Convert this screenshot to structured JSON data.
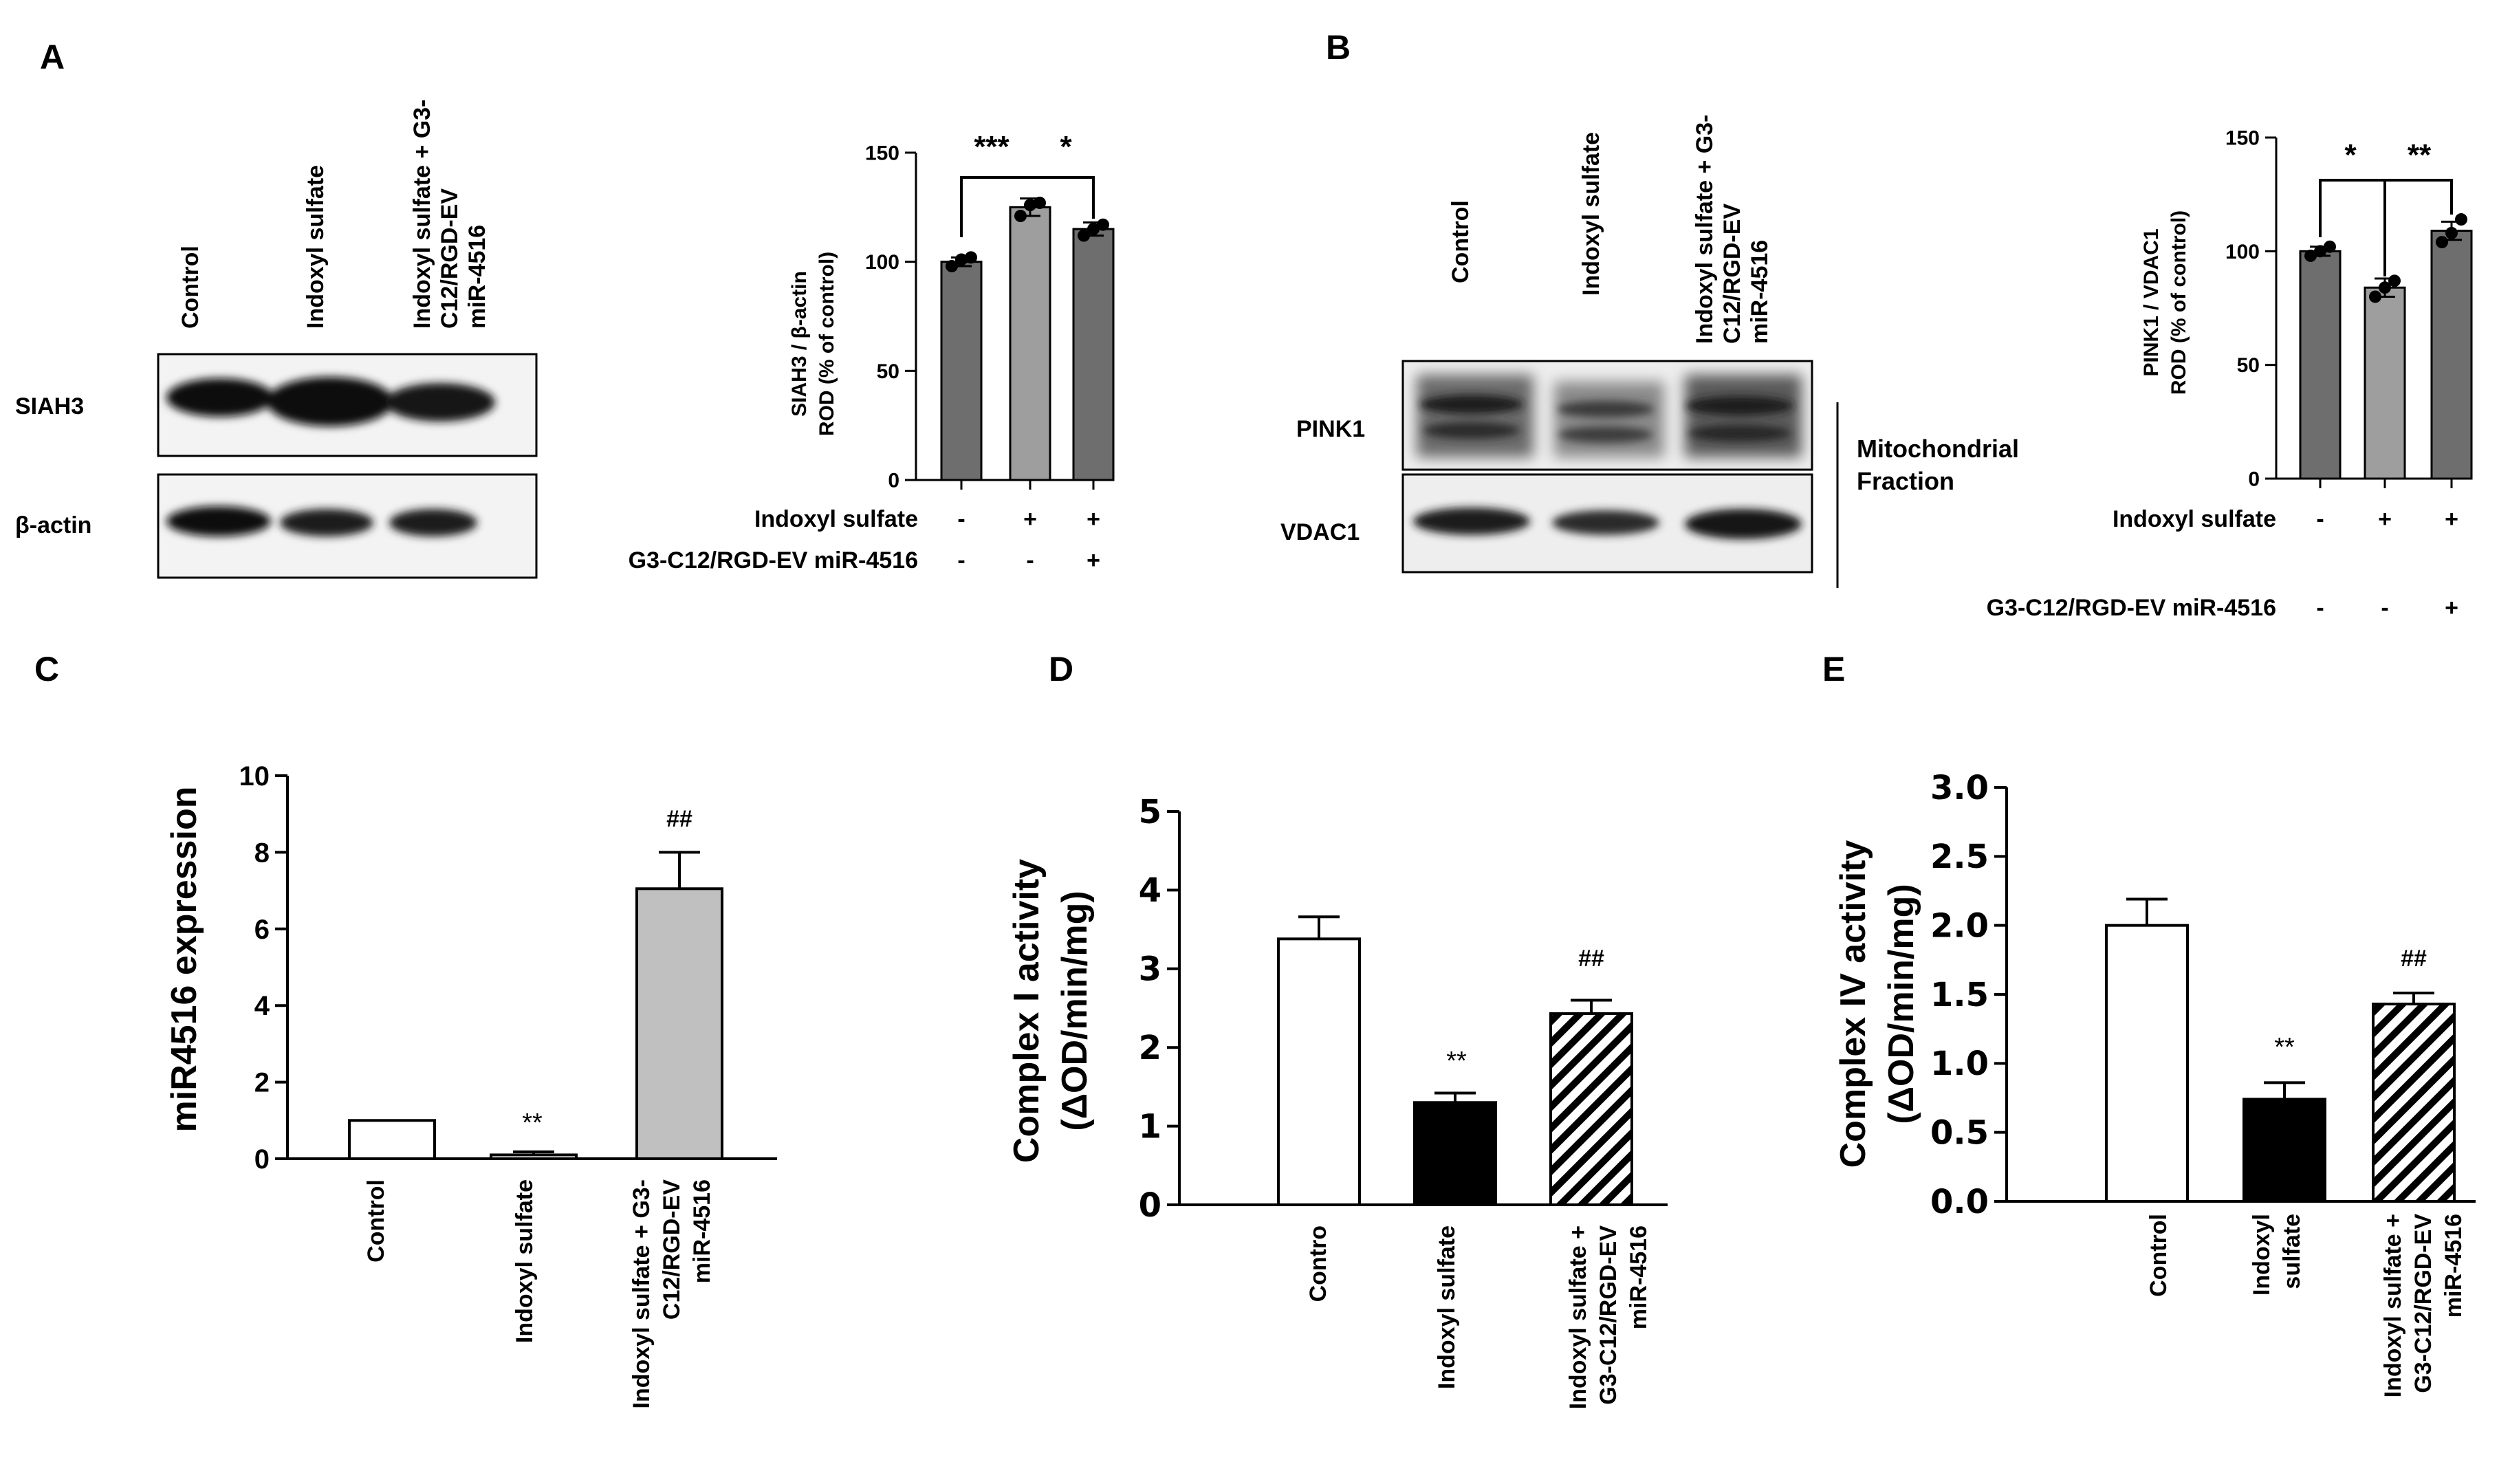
{
  "panel_letters": [
    "A",
    "B",
    "C",
    "D",
    "E"
  ],
  "panelA": {
    "lane_labels": [
      "Control",
      "Indoxyl sulfate",
      "Indoxyl  sulfate  +  G3-",
      "C12/RGD-EV",
      "miR-4516"
    ],
    "rows": [
      "SIAH3",
      "β-actin"
    ],
    "conditions": [
      {
        "label": "Indoxyl sulfate",
        "marks": [
          "-",
          "+",
          "+"
        ]
      },
      {
        "label": "G3-C12/RGD-EV miR-4516",
        "marks": [
          "-",
          "-",
          "+"
        ]
      }
    ],
    "stats": [
      "***",
      "*"
    ]
  },
  "panelB": {
    "lane_labels": [
      "Control",
      "Indoxyl sulfate",
      "Indoxyl  sulfate  +  G3-",
      "C12/RGD-EV",
      "miR-4516"
    ],
    "rows": [
      "PINK1",
      "VDAC1"
    ],
    "fraction_label": [
      "Mitochondrial",
      "Fraction"
    ],
    "conditions": [
      {
        "label": "Indoxyl sulfate",
        "marks": [
          "-",
          "+",
          "+"
        ]
      },
      {
        "label": "G3-C12/RGD-EV miR-4516",
        "marks": [
          "-",
          "-",
          "+"
        ]
      }
    ],
    "stats": [
      "*",
      "**"
    ]
  },
  "panelC": {
    "ylabel": "miR4516 expression",
    "cat_labels": [
      [
        "Control"
      ],
      [
        "Indoxyl sulfate"
      ],
      [
        "Indoxyl sulfate + G3-",
        "C12/RGD-EV",
        "miR-4516"
      ]
    ],
    "annotations": [
      "",
      "**",
      "##"
    ]
  },
  "panelD": {
    "ylabel": [
      "Complex I activity",
      "(ΔOD/min/mg)"
    ],
    "cat_labels": [
      [
        "Contro"
      ],
      [
        "Indoxyl sulfate"
      ],
      [
        "Indoxyl sulfate +",
        "G3-C12/RGD-EV",
        "miR-4516"
      ]
    ],
    "annotations": [
      "",
      "**",
      "##"
    ]
  },
  "panelE": {
    "ylabel": [
      "Complex IV activity",
      "(ΔOD/min/mg)"
    ],
    "cat_labels": [
      [
        "Control"
      ],
      [
        "Indoxyl",
        "sulfate"
      ],
      [
        "Indoxyl sulfate +",
        "G3-C12/RGD-EV",
        "miR-4516"
      ]
    ],
    "annotations": [
      "",
      "**",
      "##"
    ]
  },
  "chart_data": [
    {
      "id": "A",
      "type": "bar",
      "title": "",
      "ylabel": "SIAH3 / β-actin ROD (% of control)",
      "ylabel_lines": [
        "SIAH3 / β-actin",
        "ROD (% of control)"
      ],
      "categories": [
        "-/-",
        "+/-",
        "+/+"
      ],
      "values": [
        100,
        125,
        115
      ],
      "errors": [
        2,
        4,
        3
      ],
      "points": [
        [
          98,
          101,
          102
        ],
        [
          121,
          126,
          127
        ],
        [
          112,
          115,
          117
        ]
      ],
      "ylim": [
        0,
        150
      ],
      "yticks": [
        0,
        50,
        100,
        150
      ],
      "colors": [
        "#6e6e6e",
        "#9e9e9e",
        "#6e6e6e"
      ],
      "grid": false
    },
    {
      "id": "B",
      "type": "bar",
      "title": "",
      "ylabel": "PINK1 / VDAC1 ROD (% of control)",
      "ylabel_lines": [
        "PINK1 / VDAC1",
        "ROD (% of control)"
      ],
      "categories": [
        "-/-",
        "+/-",
        "+/+"
      ],
      "values": [
        100,
        84,
        109
      ],
      "errors": [
        2,
        4,
        4
      ],
      "points": [
        [
          98,
          100,
          102
        ],
        [
          80,
          84,
          87
        ],
        [
          104,
          108,
          114
        ]
      ],
      "ylim": [
        0,
        150
      ],
      "yticks": [
        0,
        50,
        100,
        150
      ],
      "colors": [
        "#6e6e6e",
        "#9e9e9e",
        "#6e6e6e"
      ],
      "grid": false
    },
    {
      "id": "C",
      "type": "bar",
      "title": "",
      "ylabel": "miR4516 expression",
      "categories": [
        "Control",
        "Indoxyl sulfate",
        "Indoxyl sulfate + G3-C12/RGD-EV miR-4516"
      ],
      "values": [
        1,
        0.1,
        7.05
      ],
      "errors": [
        0,
        0.08,
        0.95
      ],
      "ylim": [
        0,
        10
      ],
      "yticks": [
        0,
        2,
        4,
        6,
        8,
        10
      ],
      "fills": [
        "white",
        "white",
        "#c0c0c0"
      ],
      "grid": false
    },
    {
      "id": "D",
      "type": "bar",
      "title": "",
      "ylabel": "Complex I activity (ΔOD/min/mg)",
      "categories": [
        "Contro",
        "Indoxyl sulfate",
        "Indoxyl sulfate + G3-C12/RGD-EV miR-4516"
      ],
      "values": [
        3.38,
        1.3,
        2.43
      ],
      "errors": [
        0.28,
        0.12,
        0.17
      ],
      "ylim": [
        0,
        5
      ],
      "yticks": [
        0,
        1,
        2,
        3,
        4,
        5
      ],
      "fills": [
        "white",
        "black",
        "hatch"
      ],
      "grid": false
    },
    {
      "id": "E",
      "type": "bar",
      "title": "",
      "ylabel": "Complex IV activity (ΔOD/min/mg)",
      "categories": [
        "Control",
        "Indoxyl sulfate",
        "Indoxyl sulfate + G3-C12/RGD-EV miR-4516"
      ],
      "values": [
        2.0,
        0.74,
        1.43
      ],
      "errors": [
        0.19,
        0.12,
        0.08
      ],
      "ylim": [
        0,
        3.0
      ],
      "yticks": [
        "0.0",
        "0.5",
        "1.0",
        "1.5",
        "2.0",
        "2.5",
        "3.0"
      ],
      "fills": [
        "white",
        "black",
        "hatch"
      ],
      "grid": false
    }
  ]
}
